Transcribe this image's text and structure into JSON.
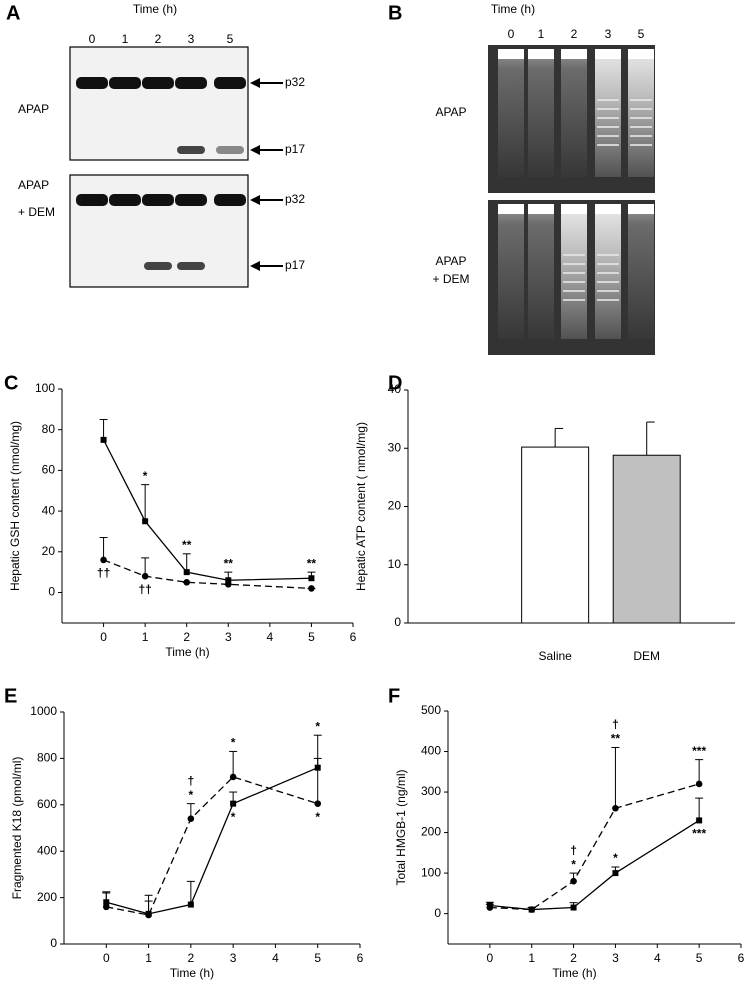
{
  "blots": [
    {
      "panel_label": "A",
      "title": "Time (h)",
      "lanes": [
        "0",
        "1",
        "2",
        "3",
        "5"
      ],
      "rows": [
        {
          "label_lines": [
            "APAP"
          ],
          "markers": [
            "p32",
            "p17"
          ]
        },
        {
          "label_lines": [
            "APAP",
            "+ DEM"
          ],
          "markers": [
            "p32",
            "p17"
          ]
        }
      ]
    },
    {
      "panel_label": "B",
      "title": "Time (h)",
      "lanes": [
        "0",
        "1",
        "2",
        "3",
        "5"
      ],
      "rows": [
        {
          "label_lines": [
            "APAP"
          ]
        },
        {
          "label_lines": [
            "APAP",
            "+ DEM"
          ]
        }
      ]
    }
  ],
  "chart_data": [
    {
      "type": "line",
      "panel_label": "C",
      "xlabel": "Time (h)",
      "ylabel": "Hepatic GSH content (nmol/mg)",
      "x": [
        0,
        1,
        2,
        3,
        5
      ],
      "xlim": [
        -1,
        6
      ],
      "xticks": [
        0,
        1,
        2,
        3,
        4,
        5,
        6
      ],
      "ylim": [
        -15,
        100
      ],
      "yticks": [
        0,
        20,
        40,
        60,
        80,
        100
      ],
      "series": [
        {
          "color": "#000000",
          "line_style": "solid",
          "marker": "square",
          "values": [
            75,
            35,
            10,
            6,
            7
          ],
          "errors": [
            10,
            18,
            9,
            4,
            3
          ]
        },
        {
          "color": "#000000",
          "line_style": "dashed",
          "marker": "circle",
          "values": [
            16,
            8,
            5,
            4,
            2
          ],
          "errors": [
            11,
            9,
            0,
            0,
            0
          ]
        }
      ],
      "annotations": [
        {
          "text": "*",
          "x": 1,
          "series": 0,
          "position": "above"
        },
        {
          "text": "**",
          "x": 2,
          "series": 0,
          "position": "above"
        },
        {
          "text": "**",
          "x": 3,
          "series": 0,
          "position": "above"
        },
        {
          "text": "**",
          "x": 5,
          "series": 0,
          "position": "above"
        },
        {
          "text": "††",
          "x": 0,
          "series": 1,
          "position": "below"
        },
        {
          "text": "††",
          "x": 1,
          "series": 1,
          "position": "below"
        }
      ]
    },
    {
      "type": "bar",
      "panel_label": "D",
      "ylabel": "Hepatic ATP content ( nmol/mg)",
      "categories": [
        "Saline",
        "DEM"
      ],
      "values": [
        30.2,
        28.8
      ],
      "errors": [
        3.2,
        5.7
      ],
      "colors": [
        "#ffffff",
        "#c0c0c0"
      ],
      "ylim": [
        0,
        40
      ],
      "yticks": [
        0,
        10,
        20,
        30,
        40
      ]
    },
    {
      "type": "line",
      "panel_label": "E",
      "xlabel": "Time (h)",
      "ylabel": "Fragmented K18 (pmol/ml)",
      "x": [
        0,
        1,
        2,
        3,
        5
      ],
      "xlim": [
        -1,
        6
      ],
      "xticks": [
        0,
        1,
        2,
        3,
        4,
        5,
        6
      ],
      "ylim": [
        0,
        1000
      ],
      "yticks": [
        0,
        200,
        400,
        600,
        800,
        1000
      ],
      "series": [
        {
          "color": "#000000",
          "line_style": "solid",
          "marker": "square",
          "values": [
            180,
            130,
            170,
            605,
            760
          ],
          "errors": [
            40,
            80,
            100,
            50,
            140
          ]
        },
        {
          "color": "#000000",
          "line_style": "dashed",
          "marker": "circle",
          "values": [
            160,
            125,
            540,
            720,
            605
          ],
          "errors": [
            65,
            60,
            65,
            110,
            195
          ]
        }
      ],
      "annotations": [
        {
          "text": "†",
          "x": 2,
          "series": 1,
          "position": "above"
        },
        {
          "text": "*",
          "x": 2,
          "series": 1,
          "position": "above"
        },
        {
          "text": "*",
          "x": 3,
          "series": 1,
          "position": "above"
        },
        {
          "text": "*",
          "x": 3,
          "series": 0,
          "position": "below"
        },
        {
          "text": "*",
          "x": 5,
          "series": 0,
          "position": "above"
        },
        {
          "text": "*",
          "x": 5,
          "series": 1,
          "position": "below"
        }
      ]
    },
    {
      "type": "line",
      "panel_label": "F",
      "xlabel": "Time (h)",
      "ylabel": "Total HMGB-1 (ng/ml)",
      "x": [
        0,
        1,
        2,
        3,
        5
      ],
      "xlim": [
        -1,
        6
      ],
      "xticks": [
        0,
        1,
        2,
        3,
        4,
        5,
        6
      ],
      "ylim": [
        -75,
        500
      ],
      "yticks": [
        0,
        100,
        200,
        300,
        400,
        500
      ],
      "series": [
        {
          "color": "#000000",
          "line_style": "solid",
          "marker": "square",
          "values": [
            20,
            10,
            15,
            100,
            230
          ],
          "errors": [
            8,
            5,
            12,
            15,
            55
          ]
        },
        {
          "color": "#000000",
          "line_style": "dashed",
          "marker": "circle",
          "values": [
            15,
            10,
            80,
            260,
            320
          ],
          "errors": [
            8,
            5,
            20,
            150,
            60
          ]
        }
      ],
      "annotations": [
        {
          "text": "†",
          "x": 2,
          "series": 1,
          "position": "above"
        },
        {
          "text": "*",
          "x": 2,
          "series": 1,
          "position": "above"
        },
        {
          "text": "†",
          "x": 3,
          "series": 1,
          "position": "above"
        },
        {
          "text": "**",
          "x": 3,
          "series": 1,
          "position": "above"
        },
        {
          "text": "*",
          "x": 3,
          "series": 0,
          "position": "above"
        },
        {
          "text": "***",
          "x": 5,
          "series": 1,
          "position": "above"
        },
        {
          "text": "***",
          "x": 5,
          "series": 0,
          "position": "below"
        }
      ]
    }
  ]
}
